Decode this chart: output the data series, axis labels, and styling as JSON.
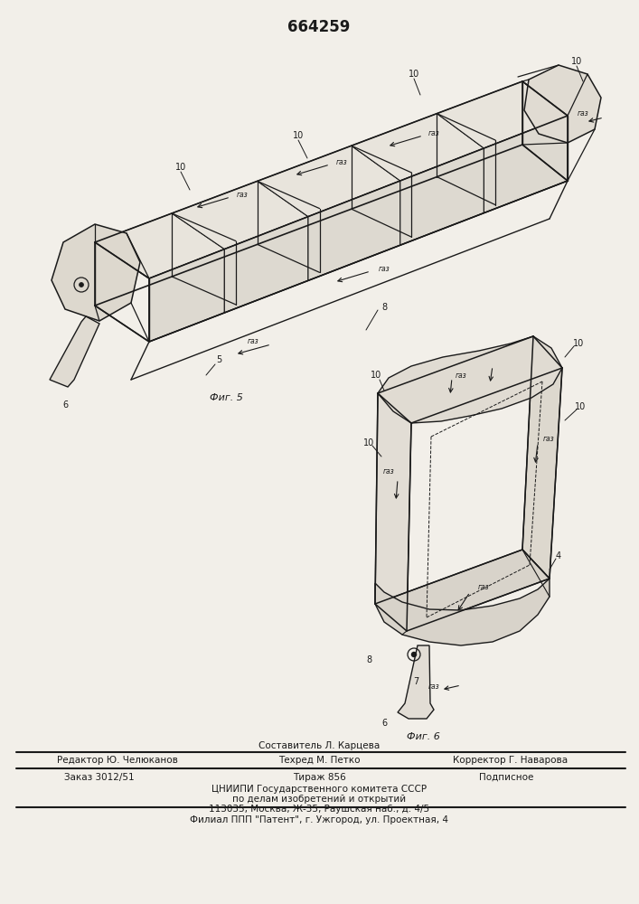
{
  "patent_number": "664259",
  "background_color": "#f2efe9",
  "line_color": "#1a1a1a",
  "fig5_label": "Фиг. 5",
  "fig6_label": "Фиг. 6",
  "footer": {
    "line1": "Составитель Л. Карцева",
    "line2_left": "Редактор Ю. Челюканов",
    "line2_mid": "Техред М. Петко",
    "line2_right": "Корректор Г. Наварова",
    "line3_left": "Заказ 3012/51",
    "line3_mid": "Тираж 856",
    "line3_right": "Подписное",
    "line4": "ЦНИИПИ Государственного комитета СССР",
    "line5": "по делам изобретений и открытий",
    "line6": "113035, Москва, Ж-35, Раушская наб., д. 4/5",
    "line7": "Филиал ППП \"Патент\", г. Ужгород, ул. Проектная, 4"
  },
  "gas_label": "газ",
  "lbl10": "10",
  "lbl8": "8",
  "lbl6": "6",
  "lbl5": "5",
  "lbl4": "4",
  "lbl7": "7"
}
